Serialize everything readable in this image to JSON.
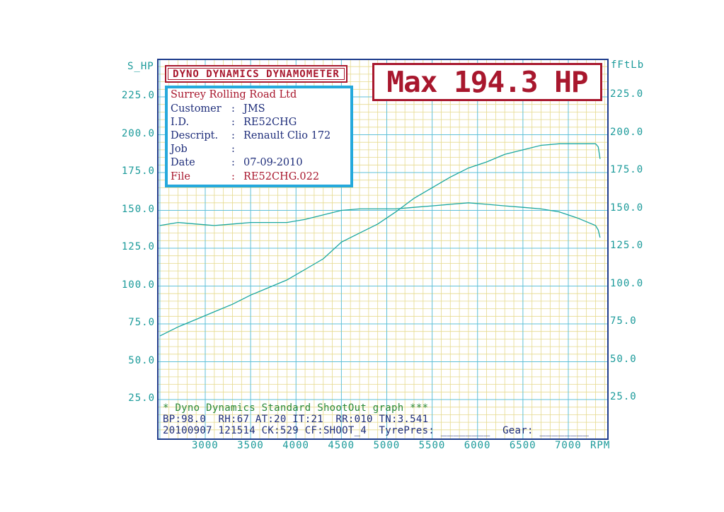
{
  "axes": {
    "left_unit": "S_HP",
    "right_unit": "fFtLb",
    "x_unit": "RPM",
    "left_ticks": [
      "225.0",
      "200.0",
      "175.0",
      "150.0",
      "125.0",
      "100.0",
      "75.0",
      "50.0",
      "25.0"
    ],
    "right_ticks": [
      "225.0",
      "200.0",
      "175.0",
      "150.0",
      "125.0",
      "100.0",
      "75.0",
      "50.0",
      "25.0"
    ],
    "x_ticks": [
      "3000",
      "3500",
      "4000",
      "4500",
      "5000",
      "5500",
      "6000",
      "6500",
      "7000"
    ]
  },
  "title_box": "DYNO DYNAMICS DYNAMOMETER",
  "max_box": "Max 194.3 HP",
  "info": {
    "company": "Surrey Rolling Road Ltd",
    "rows": [
      {
        "key": "Customer",
        "value": "JMS"
      },
      {
        "key": "I.D.",
        "value": "RE52CHG"
      },
      {
        "key": "Descript.",
        "value": "Renault Clio 172"
      },
      {
        "key": "Job",
        "value": ""
      },
      {
        "key": "Date",
        "value": "07-09-2010"
      },
      {
        "key": "File",
        "value": "RE52CHG.022"
      }
    ]
  },
  "footer": {
    "line1": "* Dyno Dynamics Standard ShootOut graph ***",
    "line2": "BP:98.0  RH:67 AT:20 IT:21  RR:010 TN:3.541",
    "line3": "20100907 121514 CK:529 CF:SHOOT_4  TyrePres: ________  Gear: ________"
  },
  "colors": {
    "frame": "#1e3c8c",
    "grid": "#e6da8e",
    "grid_major": "#5fc0d8",
    "curve": "#1aa7a0",
    "accent_red": "#a8172d",
    "info_border": "#25a9dc"
  },
  "chart_data": {
    "type": "line",
    "xlabel": "RPM",
    "ylabel": "S_HP",
    "y2label": "fFtLb",
    "xlim": [
      2500,
      7500
    ],
    "ylim": [
      25,
      250
    ],
    "y2lim": [
      25,
      250
    ],
    "grid": true,
    "series": [
      {
        "name": "",
        "axis": "left",
        "x": [
          2500,
          2700,
          2900,
          3100,
          3300,
          3500,
          3700,
          3900,
          4100,
          4300,
          4500,
          4700,
          4900,
          5100,
          5300,
          5500,
          5700,
          5900,
          6100,
          6300,
          6500,
          6700,
          6900,
          7100,
          7300,
          7330,
          7350
        ],
        "y": [
          67,
          73,
          78,
          83,
          88,
          94,
          99,
          104,
          111,
          118,
          129,
          135,
          141,
          149,
          158,
          165,
          172,
          178,
          182,
          187,
          190,
          193,
          194,
          194,
          194,
          192,
          184
        ]
      },
      {
        "name": "",
        "axis": "right",
        "x": [
          2500,
          2700,
          2900,
          3100,
          3300,
          3500,
          3700,
          3900,
          4100,
          4300,
          4500,
          4700,
          4900,
          5100,
          5300,
          5500,
          5700,
          5900,
          6100,
          6300,
          6500,
          6700,
          6900,
          7100,
          7300,
          7330,
          7350
        ],
        "y": [
          140,
          142,
          141,
          140,
          141,
          142,
          142,
          142,
          144,
          147,
          150,
          151,
          151,
          151,
          152,
          153,
          154,
          155,
          154,
          153,
          152,
          151,
          149,
          145,
          140,
          137,
          132
        ]
      }
    ]
  }
}
